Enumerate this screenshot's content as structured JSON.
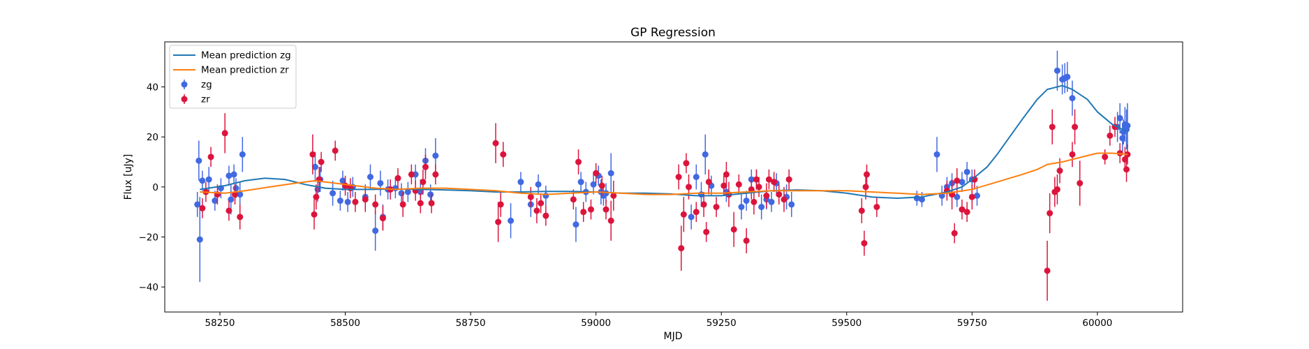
{
  "chart_data": {
    "type": "scatter",
    "title": "GP Regression",
    "xlabel": "MJD",
    "ylabel": "Flux [uJy]",
    "xlim": [
      58140,
      60170
    ],
    "ylim": [
      -50,
      58
    ],
    "xticks": [
      58250,
      58500,
      58750,
      59000,
      59250,
      59500,
      59750,
      60000
    ],
    "yticks": [
      -40,
      -20,
      0,
      20,
      40
    ],
    "grid": false,
    "legend_position": "top-left",
    "colors": {
      "zg_line": "#1f77b4",
      "zr_line": "#ff7f0e",
      "zg_points": "#4169e1",
      "zr_points": "#dc143c"
    },
    "legend": [
      "Mean prediction zg",
      "Mean prediction zr",
      "zg",
      "zr"
    ],
    "lines": [
      {
        "name": "Mean prediction zg",
        "x": [
          58210,
          58260,
          58300,
          58340,
          58380,
          58420,
          58460,
          58500,
          58550,
          58600,
          58650,
          58700,
          58750,
          58800,
          58850,
          58900,
          58950,
          59000,
          59050,
          59100,
          59150,
          59200,
          59250,
          59300,
          59350,
          59400,
          59450,
          59500,
          59550,
          59600,
          59650,
          59700,
          59730,
          59750,
          59780,
          59800,
          59850,
          59880,
          59900,
          59930,
          59950,
          59980,
          60000,
          60030,
          60060
        ],
        "y": [
          -1,
          0.5,
          2.5,
          3.5,
          3,
          1,
          -0.5,
          -1,
          -1,
          -0.8,
          -1,
          -1.2,
          -1.5,
          -2,
          -2,
          -1.8,
          -1.8,
          -2,
          -2.5,
          -2.5,
          -2.8,
          -3.5,
          -3.5,
          -2.5,
          -1.5,
          -1.2,
          -1.5,
          -2.5,
          -4,
          -4.5,
          -4,
          -2,
          0,
          3,
          8,
          13,
          27,
          35,
          39,
          40.5,
          39,
          35,
          30,
          25,
          22
        ]
      },
      {
        "name": "Mean prediction zr",
        "x": [
          58210,
          58260,
          58300,
          58350,
          58400,
          58440,
          58480,
          58520,
          58560,
          58600,
          58650,
          58700,
          58750,
          58800,
          58850,
          58900,
          58950,
          59000,
          59050,
          59100,
          59150,
          59200,
          59250,
          59300,
          59350,
          59400,
          59450,
          59500,
          59550,
          59600,
          59650,
          59700,
          59750,
          59800,
          59850,
          59880,
          59900,
          59930,
          59950,
          59980,
          60000,
          60030,
          60060
        ],
        "y": [
          -2,
          -2.5,
          -1.5,
          0,
          1.5,
          2.5,
          1.5,
          0.5,
          -0.5,
          -1,
          -0.5,
          -0.5,
          -1,
          -1.5,
          -2.5,
          -3,
          -2.5,
          -2,
          -2.5,
          -3,
          -3,
          -2.5,
          -2.5,
          -2,
          -1.5,
          -1.5,
          -1.5,
          -1.5,
          -2,
          -2.5,
          -3,
          -2.5,
          -1,
          2,
          5,
          7,
          9,
          10,
          11,
          12.5,
          13.5,
          13.5,
          13
        ]
      }
    ],
    "series": [
      {
        "name": "zg",
        "marker": "o",
        "x": [
          58205,
          58208,
          58210,
          58215,
          58228,
          58240,
          58252,
          58268,
          58272,
          58278,
          58282,
          58290,
          58295,
          58440,
          58445,
          58450,
          58475,
          58490,
          58495,
          58505,
          58515,
          58540,
          58550,
          58560,
          58570,
          58575,
          58585,
          58600,
          58612,
          58625,
          58640,
          58650,
          58660,
          58670,
          58680,
          58830,
          58850,
          58870,
          58885,
          58900,
          58960,
          58970,
          58980,
          58995,
          59005,
          59010,
          59015,
          59020,
          59030,
          59190,
          59200,
          59210,
          59218,
          59230,
          59260,
          59290,
          59300,
          59310,
          59320,
          59330,
          59340,
          59350,
          59360,
          59380,
          59390,
          59640,
          59650,
          59680,
          59690,
          59700,
          59710,
          59720,
          59730,
          59740,
          59750,
          59760,
          59920,
          59930,
          59935,
          59940,
          59950,
          60040,
          60045,
          60050,
          60052,
          60055,
          60058,
          60060
        ],
        "y": [
          -7,
          10.5,
          -21,
          2.5,
          3,
          -5.5,
          -0.5,
          4.5,
          -5,
          5,
          -0.5,
          -3,
          13,
          8,
          -1,
          3,
          -2.5,
          -5.5,
          2.5,
          -6,
          0,
          -4,
          4,
          -17.5,
          1.5,
          -12,
          -1,
          -0.5,
          -2.5,
          -2,
          5,
          -2,
          10.5,
          -3,
          12.5,
          -13.5,
          2,
          -7,
          1,
          -3.5,
          -15,
          2,
          -2,
          1,
          4.5,
          -2,
          -3.5,
          -2.5,
          5.5,
          -12,
          4,
          -3,
          13,
          0.5,
          -2,
          -8,
          -5.5,
          3,
          3,
          -8,
          -5,
          -6,
          1.5,
          -4,
          -7,
          -4.5,
          -5,
          13,
          -3.5,
          0,
          1.5,
          -4,
          2,
          6,
          3,
          -3.5,
          46.5,
          43,
          43.5,
          44,
          35.5,
          24,
          27.5,
          19.5,
          22,
          25,
          23,
          24.5
        ],
        "err": [
          5,
          8,
          17,
          4,
          5,
          4,
          4,
          4,
          6,
          4,
          4,
          5,
          7,
          6,
          5,
          5,
          5,
          4,
          4,
          4,
          4,
          5,
          5,
          8,
          5,
          5,
          4,
          4,
          4,
          4,
          4,
          5,
          5,
          4,
          7,
          7,
          4,
          5,
          4,
          4,
          7,
          4,
          4,
          4,
          4,
          5,
          4,
          4,
          8,
          5,
          5,
          5,
          8,
          4,
          4,
          5,
          4,
          4,
          4,
          5,
          4,
          4,
          4,
          5,
          5,
          3,
          3,
          7,
          4,
          4,
          4,
          4,
          4,
          4,
          4,
          4,
          8,
          6,
          6,
          6,
          7,
          6,
          6,
          6,
          5,
          7,
          8,
          9
        ]
      },
      {
        "name": "zr",
        "marker": "o",
        "x": [
          58215,
          58222,
          58232,
          58245,
          58260,
          58268,
          58280,
          58290,
          58435,
          58438,
          58442,
          58448,
          58452,
          58480,
          58500,
          58510,
          58520,
          58540,
          58560,
          58575,
          58590,
          58605,
          58615,
          58632,
          58640,
          58650,
          58655,
          58660,
          58672,
          58680,
          58800,
          58805,
          58810,
          58815,
          58870,
          58882,
          58890,
          58900,
          58955,
          58965,
          58975,
          58990,
          59000,
          59012,
          59020,
          59030,
          59035,
          59165,
          59170,
          59175,
          59180,
          59185,
          59200,
          59215,
          59220,
          59225,
          59240,
          59255,
          59260,
          59265,
          59275,
          59285,
          59300,
          59310,
          59315,
          59320,
          59325,
          59340,
          59345,
          59355,
          59365,
          59375,
          59385,
          59530,
          59535,
          59538,
          59540,
          59560,
          59700,
          59710,
          59715,
          59720,
          59730,
          59740,
          59750,
          59755,
          59900,
          59905,
          59910,
          59915,
          59920,
          59925,
          59950,
          59955,
          59965,
          60015,
          60025,
          60035,
          60045,
          60055,
          60058,
          60060
        ],
        "y": [
          -8.5,
          -2,
          12,
          -3,
          21.5,
          -9.5,
          -3,
          -12,
          13,
          -11,
          -4,
          3,
          10,
          14.5,
          0.5,
          -0.5,
          -6,
          -5,
          -7,
          -12.5,
          -1,
          3.5,
          -7,
          5,
          -1.5,
          -6.5,
          2,
          8,
          -6.5,
          5,
          17.5,
          -14,
          -7,
          13,
          -4,
          -9.5,
          -6.5,
          -11.5,
          -5,
          10,
          -10,
          -9,
          5.5,
          0.5,
          -9,
          -13.5,
          -3.5,
          4,
          -24.5,
          -11,
          9.5,
          0,
          -10,
          -7,
          -18,
          2,
          -8,
          0.5,
          5,
          -3,
          -17,
          1,
          -21.5,
          -1,
          -6,
          3,
          0,
          -3.5,
          3,
          2,
          -3,
          -5,
          3,
          -9.5,
          -22.5,
          0,
          5,
          -8,
          -1.5,
          -3,
          -18.5,
          2.5,
          -9,
          -10,
          -4,
          3,
          -33.5,
          -10.5,
          24,
          -2,
          -1,
          6.5,
          13,
          24,
          1.5,
          12,
          20.5,
          24,
          13.5,
          11,
          7,
          13
        ],
        "err": [
          4,
          4,
          4,
          4,
          8,
          4,
          4,
          5,
          8,
          6,
          5,
          5,
          4,
          4,
          4,
          4,
          4,
          5,
          4,
          5,
          4,
          4,
          5,
          4,
          4,
          4,
          5,
          5,
          4,
          4,
          8,
          8,
          5,
          5,
          4,
          5,
          4,
          4,
          4,
          5,
          4,
          4,
          4,
          4,
          4,
          8,
          6,
          5,
          9,
          7,
          4,
          5,
          4,
          5,
          4,
          5,
          4,
          4,
          5,
          5,
          7,
          4,
          5,
          4,
          5,
          4,
          4,
          5,
          4,
          4,
          4,
          5,
          4,
          5,
          5,
          5,
          4,
          4,
          4,
          6,
          4,
          5,
          4,
          4,
          5,
          4,
          12,
          8,
          7,
          6,
          6,
          5,
          5,
          7,
          9,
          3,
          4,
          4,
          4,
          5,
          5,
          4
        ]
      }
    ]
  }
}
